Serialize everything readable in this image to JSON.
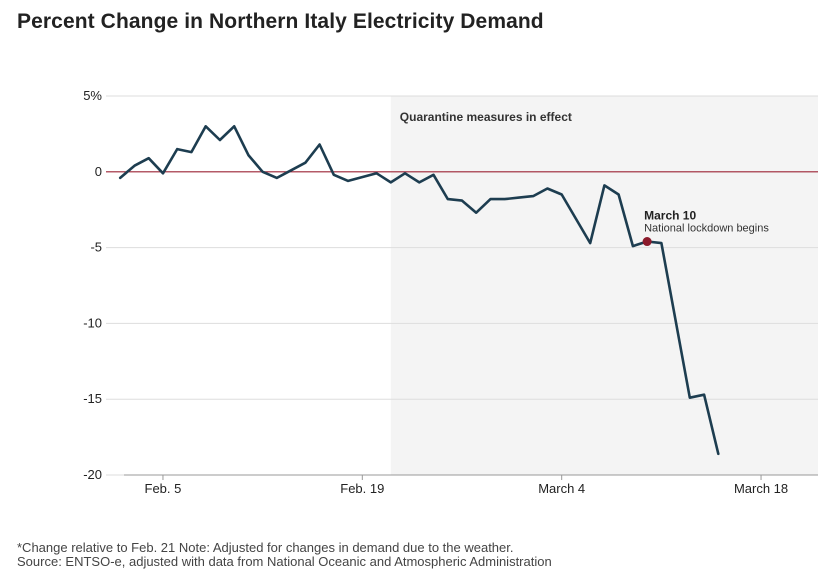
{
  "chart_data": {
    "type": "line",
    "title": "Percent Change in Northern Italy Electricity Demand",
    "ylim": [
      -20,
      5
    ],
    "y_ticks": [
      {
        "value": 5,
        "label": "5%"
      },
      {
        "value": 0,
        "label": "0"
      },
      {
        "value": -5,
        "label": "-5"
      },
      {
        "value": -10,
        "label": "-10"
      },
      {
        "value": -15,
        "label": "-15"
      },
      {
        "value": -20,
        "label": "-20"
      }
    ],
    "x_start": "2020-02-01",
    "x_end": "2020-03-22",
    "x_ticks": [
      {
        "date": "2020-02-05",
        "label": "Feb. 5"
      },
      {
        "date": "2020-02-19",
        "label": "Feb. 19"
      },
      {
        "date": "2020-03-04",
        "label": "March 4"
      },
      {
        "date": "2020-03-18",
        "label": "March 18"
      }
    ],
    "grid": "horizontal",
    "shaded_region": {
      "start": "2020-02-21",
      "end": "2020-03-22",
      "label": "Quarantine measures in effect"
    },
    "zero_line_color": "#9b2335",
    "line_color": "#1d3d50",
    "series": [
      {
        "points": [
          {
            "x": "2020-02-02",
            "y": -0.4
          },
          {
            "x": "2020-02-03",
            "y": 0.4
          },
          {
            "x": "2020-02-04",
            "y": 0.9
          },
          {
            "x": "2020-02-05",
            "y": -0.1
          },
          {
            "x": "2020-02-06",
            "y": 1.5
          },
          {
            "x": "2020-02-07",
            "y": 1.3
          },
          {
            "x": "2020-02-08",
            "y": 3.0
          },
          {
            "x": "2020-02-09",
            "y": 2.1
          },
          {
            "x": "2020-02-10",
            "y": 3.0
          },
          {
            "x": "2020-02-11",
            "y": 1.1
          },
          {
            "x": "2020-02-12",
            "y": 0.0
          },
          {
            "x": "2020-02-13",
            "y": -0.4
          },
          {
            "x": "2020-02-14",
            "y": 0.1
          },
          {
            "x": "2020-02-15",
            "y": 0.6
          },
          {
            "x": "2020-02-16",
            "y": 1.8
          },
          {
            "x": "2020-02-17",
            "y": -0.2
          },
          {
            "x": "2020-02-18",
            "y": -0.6
          },
          {
            "x": "2020-02-20",
            "y": -0.1
          },
          {
            "x": "2020-02-21",
            "y": -0.7
          },
          {
            "x": "2020-02-22",
            "y": -0.1
          },
          {
            "x": "2020-02-23",
            "y": -0.7
          },
          {
            "x": "2020-02-24",
            "y": -0.2
          },
          {
            "x": "2020-02-25",
            "y": -1.8
          },
          {
            "x": "2020-02-26",
            "y": -1.9
          },
          {
            "x": "2020-02-27",
            "y": -2.7
          },
          {
            "x": "2020-02-28",
            "y": -1.8
          },
          {
            "x": "2020-02-29",
            "y": -1.8
          },
          {
            "x": "2020-03-01",
            "y": -1.7
          },
          {
            "x": "2020-03-02",
            "y": -1.6
          },
          {
            "x": "2020-03-03",
            "y": -1.1
          },
          {
            "x": "2020-03-04",
            "y": -1.5
          },
          {
            "x": "2020-03-06",
            "y": -4.7
          },
          {
            "x": "2020-03-07",
            "y": -0.9
          },
          {
            "x": "2020-03-08",
            "y": -1.5
          },
          {
            "x": "2020-03-09",
            "y": -4.9
          },
          {
            "x": "2020-03-10",
            "y": -4.6
          },
          {
            "x": "2020-03-11",
            "y": -4.7
          },
          {
            "x": "2020-03-13",
            "y": -14.9
          },
          {
            "x": "2020-03-14",
            "y": -14.7
          },
          {
            "x": "2020-03-15",
            "y": -18.6
          }
        ]
      }
    ],
    "annotation": {
      "x": "2020-03-10",
      "y": -4.6,
      "title": "March 10",
      "text": "National lockdown begins",
      "marker_color": "#8b1a2b"
    }
  },
  "footnote": {
    "line1": "*Change relative to Feb. 21 Note: Adjusted for changes in demand due to the weather.",
    "line2": "Source: ENTSO-e, adjusted with data from National Oceanic and Atmospheric Administration"
  }
}
